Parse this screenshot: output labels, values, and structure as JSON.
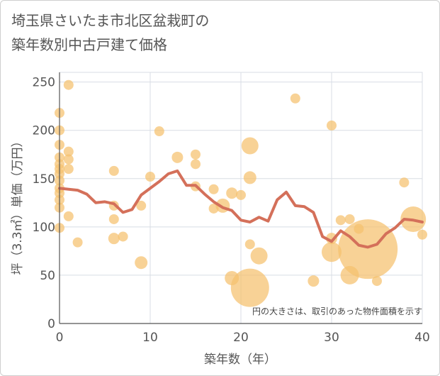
{
  "title_line1": "埼玉県さいたま市北区盆栽町の",
  "title_line2": "築年数別中古戸建て価格",
  "note": "円の大きさは、取引のあった物件面積を示す",
  "colors": {
    "bubble": "#f5c06e",
    "line": "#d4705a",
    "grid": "#d8dde4",
    "axis": "#555555"
  },
  "chart_data": {
    "type": "scatter",
    "xlabel": "築年数（年）",
    "ylabel": "坪（3.3㎡）単価（万円）",
    "xlim": [
      0,
      40
    ],
    "ylim": [
      0,
      260
    ],
    "x_ticks": [
      0,
      10,
      20,
      30,
      40
    ],
    "y_ticks": [
      0,
      50,
      100,
      150,
      200,
      250
    ],
    "grid": true,
    "bubbles": [
      {
        "x": 0,
        "y": 218,
        "r": 7
      },
      {
        "x": 0,
        "y": 200,
        "r": 7
      },
      {
        "x": 0,
        "y": 185,
        "r": 7
      },
      {
        "x": 0,
        "y": 172,
        "r": 7
      },
      {
        "x": 0,
        "y": 165,
        "r": 7
      },
      {
        "x": 0,
        "y": 160,
        "r": 7
      },
      {
        "x": 0,
        "y": 155,
        "r": 7
      },
      {
        "x": 0,
        "y": 148,
        "r": 7
      },
      {
        "x": 0,
        "y": 140,
        "r": 7
      },
      {
        "x": 0,
        "y": 135,
        "r": 7
      },
      {
        "x": 0,
        "y": 128,
        "r": 7
      },
      {
        "x": 0,
        "y": 120,
        "r": 7
      },
      {
        "x": 0,
        "y": 99,
        "r": 7
      },
      {
        "x": 1,
        "y": 247,
        "r": 7
      },
      {
        "x": 1,
        "y": 178,
        "r": 7
      },
      {
        "x": 1,
        "y": 170,
        "r": 7
      },
      {
        "x": 1,
        "y": 160,
        "r": 7
      },
      {
        "x": 1,
        "y": 111,
        "r": 7
      },
      {
        "x": 2,
        "y": 84,
        "r": 7
      },
      {
        "x": 6,
        "y": 158,
        "r": 7
      },
      {
        "x": 6,
        "y": 122,
        "r": 7
      },
      {
        "x": 6,
        "y": 108,
        "r": 7
      },
      {
        "x": 6,
        "y": 88,
        "r": 8
      },
      {
        "x": 7,
        "y": 90,
        "r": 7
      },
      {
        "x": 9,
        "y": 122,
        "r": 7
      },
      {
        "x": 9,
        "y": 63,
        "r": 9
      },
      {
        "x": 10,
        "y": 152,
        "r": 7
      },
      {
        "x": 11,
        "y": 199,
        "r": 7
      },
      {
        "x": 13,
        "y": 172,
        "r": 8
      },
      {
        "x": 15,
        "y": 175,
        "r": 7
      },
      {
        "x": 15,
        "y": 165,
        "r": 7
      },
      {
        "x": 15,
        "y": 142,
        "r": 7
      },
      {
        "x": 17,
        "y": 139,
        "r": 7
      },
      {
        "x": 17,
        "y": 119,
        "r": 7
      },
      {
        "x": 18,
        "y": 122,
        "r": 10
      },
      {
        "x": 19,
        "y": 135,
        "r": 8
      },
      {
        "x": 19,
        "y": 47,
        "r": 10
      },
      {
        "x": 20,
        "y": 133,
        "r": 7
      },
      {
        "x": 21,
        "y": 184,
        "r": 12
      },
      {
        "x": 21,
        "y": 151,
        "r": 9
      },
      {
        "x": 21,
        "y": 82,
        "r": 7
      },
      {
        "x": 21,
        "y": 37,
        "r": 27
      },
      {
        "x": 22,
        "y": 70,
        "r": 12
      },
      {
        "x": 26,
        "y": 233,
        "r": 7
      },
      {
        "x": 28,
        "y": 44,
        "r": 8
      },
      {
        "x": 30,
        "y": 205,
        "r": 7
      },
      {
        "x": 30,
        "y": 88,
        "r": 8
      },
      {
        "x": 30,
        "y": 74,
        "r": 14
      },
      {
        "x": 31,
        "y": 107,
        "r": 7
      },
      {
        "x": 32,
        "y": 108,
        "r": 7
      },
      {
        "x": 32,
        "y": 50,
        "r": 13
      },
      {
        "x": 33,
        "y": 98,
        "r": 7
      },
      {
        "x": 34,
        "y": 77,
        "r": 42
      },
      {
        "x": 35,
        "y": 44,
        "r": 7
      },
      {
        "x": 38,
        "y": 146,
        "r": 7
      },
      {
        "x": 39,
        "y": 108,
        "r": 18
      },
      {
        "x": 40,
        "y": 92,
        "r": 7
      }
    ],
    "trend_line": {
      "x": [
        0,
        1,
        2,
        3,
        4,
        5,
        6,
        7,
        8,
        9,
        10,
        11,
        12,
        13,
        14,
        15,
        16,
        17,
        18,
        19,
        20,
        21,
        22,
        23,
        24,
        25,
        26,
        27,
        28,
        29,
        30,
        31,
        32,
        33,
        34,
        35,
        36,
        37,
        38,
        39,
        40
      ],
      "y": [
        140,
        139,
        138,
        134,
        125,
        126,
        124,
        115,
        118,
        133,
        140,
        147,
        155,
        158,
        143,
        143,
        134,
        126,
        120,
        117,
        107,
        105,
        110,
        106,
        128,
        136,
        122,
        121,
        115,
        90,
        85,
        96,
        90,
        81,
        79,
        82,
        93,
        99,
        108,
        107,
        105
      ]
    }
  }
}
